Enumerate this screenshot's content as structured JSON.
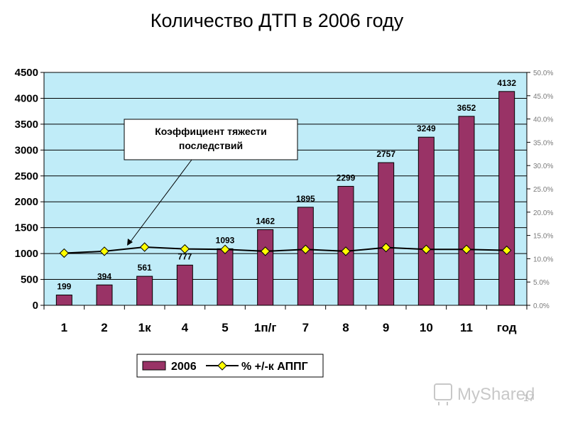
{
  "chart_data": {
    "type": "bar",
    "title": "Количество ДТП в 2006 году",
    "categories": [
      "1",
      "2",
      "1к",
      "4",
      "5",
      "1п/г",
      "7",
      "8",
      "9",
      "10",
      "11",
      "год"
    ],
    "series": [
      {
        "name": "2006",
        "type": "bar",
        "axis": "left",
        "values": [
          199,
          394,
          561,
          777,
          1093,
          1462,
          1895,
          2299,
          2757,
          3249,
          3652,
          4132
        ],
        "labels": [
          "199",
          "394",
          "561",
          "777",
          "1093",
          "1462",
          "1895",
          "2299",
          "2757",
          "3249",
          "3652",
          "4132"
        ],
        "color": "#993366"
      },
      {
        "name": "% +/-к АППГ",
        "type": "line",
        "axis": "right",
        "values": [
          11.2,
          11.6,
          12.5,
          12.1,
          12.0,
          11.6,
          12.0,
          11.6,
          12.4,
          12.0,
          12.0,
          11.8
        ],
        "color": "#000000",
        "marker_color": "#ffff00"
      }
    ],
    "y_left": {
      "min": 0,
      "max": 4500,
      "ticks": [
        "0",
        "500",
        "1000",
        "1500",
        "2000",
        "2500",
        "3000",
        "3500",
        "4000",
        "4500"
      ]
    },
    "y_right": {
      "min": 0,
      "max": 50,
      "ticks": [
        "0.0%",
        "5.0%",
        "10.0%",
        "15.0%",
        "20.0%",
        "25.0%",
        "30.0%",
        "35.0%",
        "40.0%",
        "45.0%",
        "50.0%"
      ]
    },
    "grid": true,
    "legend_position": "bottom",
    "annotation": {
      "lines": [
        "Коэффициент тяжести",
        "последствий"
      ]
    },
    "plot_background": "#c0ecf8"
  },
  "watermark": {
    "text": "MyShared",
    "page": "17"
  }
}
